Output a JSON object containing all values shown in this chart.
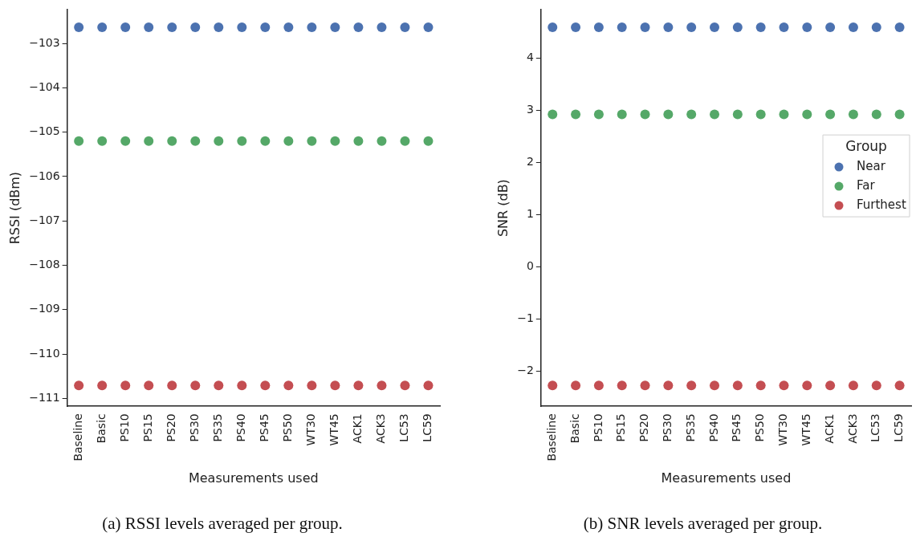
{
  "chart_data": [
    {
      "type": "scatter",
      "title": "(a) RSSI levels averaged per group.",
      "xlabel": "Measurements used",
      "ylabel": "RSSI (dBm)",
      "marker": "circle",
      "grid": false,
      "legend": false,
      "categories": [
        "Baseline",
        "Basic",
        "PS10",
        "PS15",
        "PS20",
        "PS30",
        "PS35",
        "PS40",
        "PS45",
        "PS50",
        "WT30",
        "WT45",
        "ACK1",
        "ACK3",
        "LC53",
        "LC59"
      ],
      "ylim": [
        -111.18,
        -102.24
      ],
      "yticks": [
        {
          "value": -111,
          "label": "−111"
        },
        {
          "value": -110,
          "label": "−110"
        },
        {
          "value": -109,
          "label": "−109"
        },
        {
          "value": -108,
          "label": "−108"
        },
        {
          "value": -107,
          "label": "−107"
        },
        {
          "value": -106,
          "label": "−106"
        },
        {
          "value": -105,
          "label": "−105"
        },
        {
          "value": -104,
          "label": "−104"
        },
        {
          "value": -103,
          "label": "−103"
        }
      ],
      "series": [
        {
          "color": "#4c72b0",
          "values": [
            -102.64,
            -102.64,
            -102.64,
            -102.64,
            -102.64,
            -102.64,
            -102.64,
            -102.64,
            -102.64,
            -102.64,
            -102.64,
            -102.64,
            -102.64,
            -102.64,
            -102.64,
            -102.64
          ]
        },
        {
          "color": "#55a868",
          "values": [
            -105.2,
            -105.2,
            -105.2,
            -105.2,
            -105.2,
            -105.2,
            -105.2,
            -105.2,
            -105.2,
            -105.2,
            -105.2,
            -105.2,
            -105.2,
            -105.2,
            -105.2,
            -105.2
          ]
        },
        {
          "color": "#c44e52",
          "values": [
            -110.71,
            -110.71,
            -110.71,
            -110.71,
            -110.71,
            -110.71,
            -110.71,
            -110.71,
            -110.71,
            -110.71,
            -110.71,
            -110.71,
            -110.71,
            -110.71,
            -110.71,
            -110.71
          ]
        }
      ]
    },
    {
      "type": "scatter",
      "title": "(b) SNR levels averaged per group.",
      "xlabel": "Measurements used",
      "ylabel": "SNR (dB)",
      "marker": "circle",
      "grid": false,
      "legend": "right",
      "legend_title": "Group",
      "categories": [
        "Baseline",
        "Basic",
        "PS10",
        "PS15",
        "PS20",
        "PS30",
        "PS35",
        "PS40",
        "PS45",
        "PS50",
        "WT30",
        "WT45",
        "ACK1",
        "ACK3",
        "LC53",
        "LC59"
      ],
      "ylim": [
        -2.68,
        4.93
      ],
      "yticks": [
        {
          "value": -2,
          "label": "−2"
        },
        {
          "value": -1,
          "label": "−1"
        },
        0,
        1,
        2,
        3,
        4
      ],
      "series": [
        {
          "name": "Near",
          "color": "#4c72b0",
          "values": [
            4.59,
            4.59,
            4.59,
            4.59,
            4.59,
            4.59,
            4.59,
            4.59,
            4.59,
            4.59,
            4.59,
            4.59,
            4.59,
            4.59,
            4.59,
            4.59
          ]
        },
        {
          "name": "Far",
          "color": "#55a868",
          "values": [
            2.92,
            2.92,
            2.92,
            2.92,
            2.92,
            2.92,
            2.92,
            2.92,
            2.92,
            2.92,
            2.92,
            2.92,
            2.92,
            2.92,
            2.92,
            2.92
          ]
        },
        {
          "name": "Furthest",
          "color": "#c44e52",
          "values": [
            -2.28,
            -2.28,
            -2.28,
            -2.28,
            -2.28,
            -2.28,
            -2.28,
            -2.28,
            -2.28,
            -2.28,
            -2.28,
            -2.28,
            -2.28,
            -2.28,
            -2.28,
            -2.28
          ]
        }
      ]
    }
  ]
}
